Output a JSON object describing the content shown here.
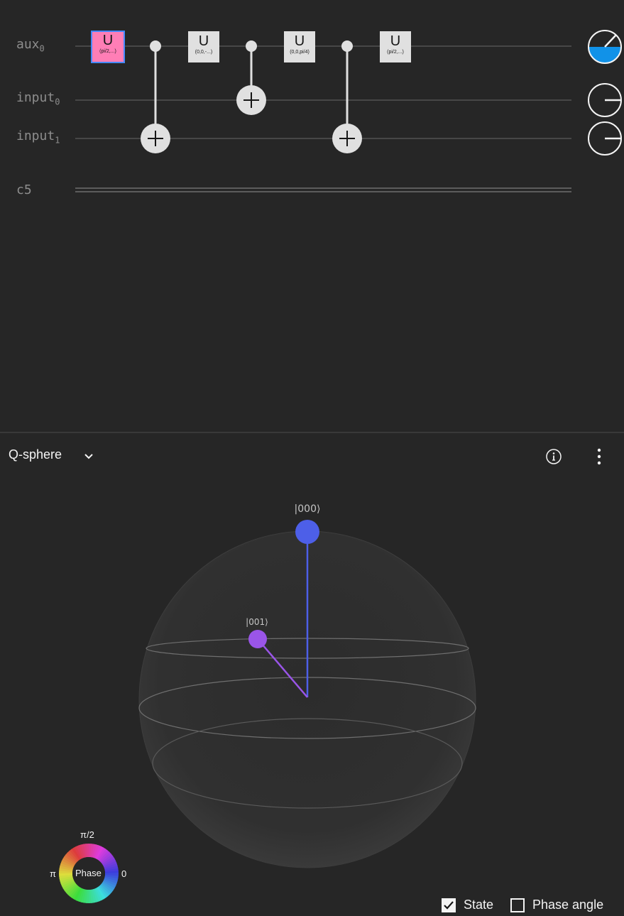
{
  "circuit": {
    "wires": [
      {
        "name": "aux",
        "sub": "0"
      },
      {
        "name": "input",
        "sub": "0"
      },
      {
        "name": "input",
        "sub": "1"
      },
      {
        "name": "c5",
        "sub": ""
      }
    ],
    "gates": [
      {
        "name": "U",
        "param": "(pi/2,...)"
      },
      {
        "name": "U",
        "param": "(0,0,-...)"
      },
      {
        "name": "U",
        "param": "(0,0,pi/4)"
      },
      {
        "name": "U",
        "param": "(pi/2,...)"
      }
    ],
    "colors": {
      "selected_gate": "#ff7eb6",
      "selected_border": "#4589ff",
      "prob_fill": "#1192e8"
    }
  },
  "qsphere": {
    "title": "Q-sphere",
    "states": [
      {
        "label": "|000⟩",
        "color": "#4d5fe8"
      },
      {
        "label": "|001⟩",
        "color": "#9a55e8"
      }
    ],
    "legend": {
      "center": "Phase",
      "top": "π/2",
      "left": "π",
      "right": "0"
    },
    "options": [
      {
        "label": "State",
        "checked": true
      },
      {
        "label": "Phase angle",
        "checked": false
      }
    ]
  }
}
